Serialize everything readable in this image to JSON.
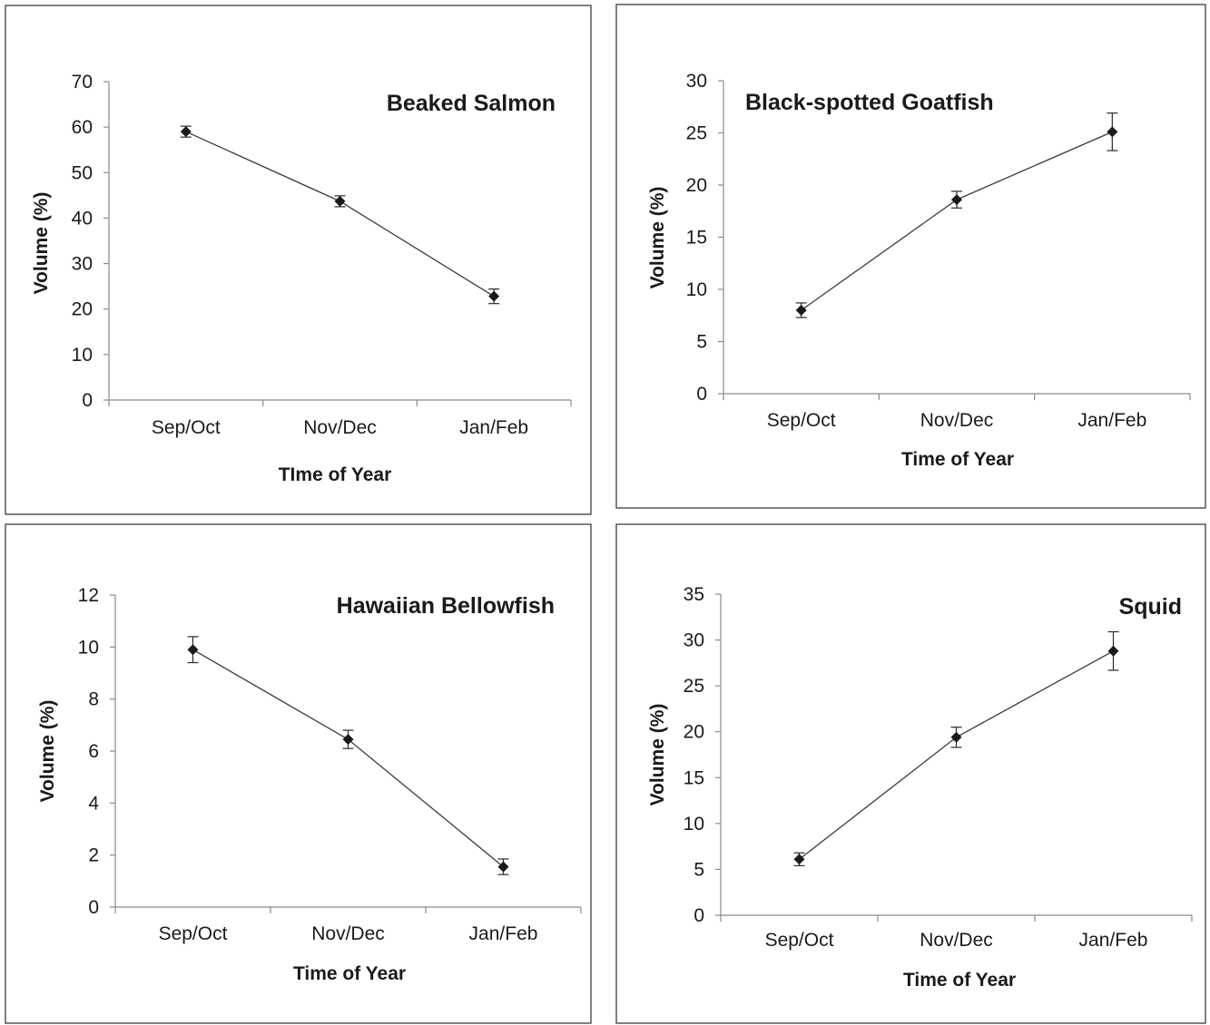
{
  "chart_data": [
    {
      "type": "line",
      "title": "Beaked Salmon",
      "xlabel": "TIme of Year",
      "ylabel": "Volume (%)",
      "categories": [
        "Sep/Oct",
        "Nov/Dec",
        "Jan/Feb"
      ],
      "series": [
        {
          "values": [
            59,
            43.7,
            22.8
          ],
          "error": [
            1.2,
            1.2,
            1.6
          ]
        }
      ],
      "ylim": [
        0,
        70
      ],
      "yticks": [
        0,
        10,
        20,
        30,
        40,
        50,
        60,
        70
      ],
      "grid": false,
      "marker_color": "#1a1a1a"
    },
    {
      "type": "line",
      "title": "Black-spotted Goatfish",
      "xlabel": "Time of Year",
      "ylabel": "Volume (%)",
      "categories": [
        "Sep/Oct",
        "Nov/Dec",
        "Jan/Feb"
      ],
      "series": [
        {
          "values": [
            8,
            18.6,
            25.1
          ],
          "error": [
            0.7,
            0.8,
            1.8
          ]
        }
      ],
      "ylim": [
        0,
        30
      ],
      "yticks": [
        0,
        5,
        10,
        15,
        20,
        25,
        30
      ],
      "grid": false,
      "marker_color": "#1a1a1a",
      "last_marker_color": "#9a9a9a"
    },
    {
      "type": "line",
      "title": "Hawaiian Bellowfish",
      "xlabel": "Time of Year",
      "ylabel": "Volume (%)",
      "categories": [
        "Sep/Oct",
        "Nov/Dec",
        "Jan/Feb"
      ],
      "series": [
        {
          "values": [
            9.9,
            6.45,
            1.55
          ],
          "error": [
            0.5,
            0.35,
            0.3
          ]
        }
      ],
      "ylim": [
        0,
        12
      ],
      "yticks": [
        0,
        2,
        4,
        6,
        8,
        10,
        12
      ],
      "grid": false,
      "marker_color": "#1a1a1a"
    },
    {
      "type": "line",
      "title": "Squid",
      "xlabel": "Time of Year",
      "ylabel": "Volume (%)",
      "categories": [
        "Sep/Oct",
        "Nov/Dec",
        "Jan/Feb"
      ],
      "series": [
        {
          "values": [
            6.1,
            19.4,
            28.8
          ],
          "error": [
            0.7,
            1.1,
            2.1
          ]
        }
      ],
      "ylim": [
        0,
        35
      ],
      "yticks": [
        0,
        5,
        10,
        15,
        20,
        25,
        30,
        35
      ],
      "grid": false,
      "marker_color": "#1a1a1a"
    }
  ]
}
